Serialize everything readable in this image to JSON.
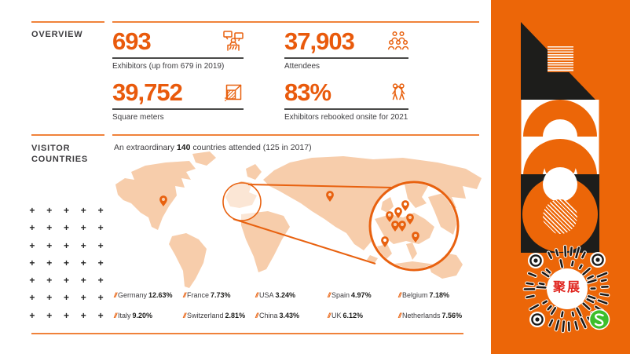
{
  "overview": {
    "section_label": "OVERVIEW",
    "stats": [
      {
        "value": "693",
        "label": "Exhibitors (up from 679 in 2019)",
        "icon": "exhibitor-booth-icon"
      },
      {
        "value": "37,903",
        "label": "Attendees",
        "icon": "attendees-group-icon"
      },
      {
        "value": "39,752",
        "label": "Square meters",
        "icon": "floor-area-icon"
      },
      {
        "value": "83%",
        "label": "Exhibitors rebooked onsite for 2021",
        "icon": "people-rebooked-icon"
      }
    ]
  },
  "visitor_countries": {
    "section_label_line1": "VISITOR",
    "section_label_line2": "COUNTRIES",
    "intro_prefix": "An extraordinary ",
    "intro_highlight": "140",
    "intro_suffix": " countries attended (125 in 2017)",
    "stats_rows": [
      [
        {
          "name": "Germany",
          "pct": "12.63%"
        },
        {
          "name": "France",
          "pct": "7.73%"
        },
        {
          "name": "USA",
          "pct": "3.24%"
        },
        {
          "name": "Spain",
          "pct": "4.97%"
        },
        {
          "name": "Belgium",
          "pct": "7.18%"
        }
      ],
      [
        {
          "name": "Italy",
          "pct": "9.20%"
        },
        {
          "name": "Switzerland",
          "pct": "2.81%"
        },
        {
          "name": "China",
          "pct": "3.43%"
        },
        {
          "name": "UK",
          "pct": "6.12%"
        },
        {
          "name": "Netherlands",
          "pct": "7.56%"
        }
      ]
    ]
  },
  "side_panel": {
    "qr_label": "聚展",
    "badge_icon": "wechat-mini-program-icon"
  },
  "colors": {
    "panel_orange": "#EC6608",
    "number_orange": "#E95A0C",
    "rule_orange": "#F0823A",
    "map_fill": "#F7CDAB",
    "pin_orange": "#E8610F",
    "text_dark": "#3E3D40",
    "shape_black": "#1D1D1B",
    "qr_center_red": "#E0251F",
    "badge_green": "#3DBE2B"
  }
}
